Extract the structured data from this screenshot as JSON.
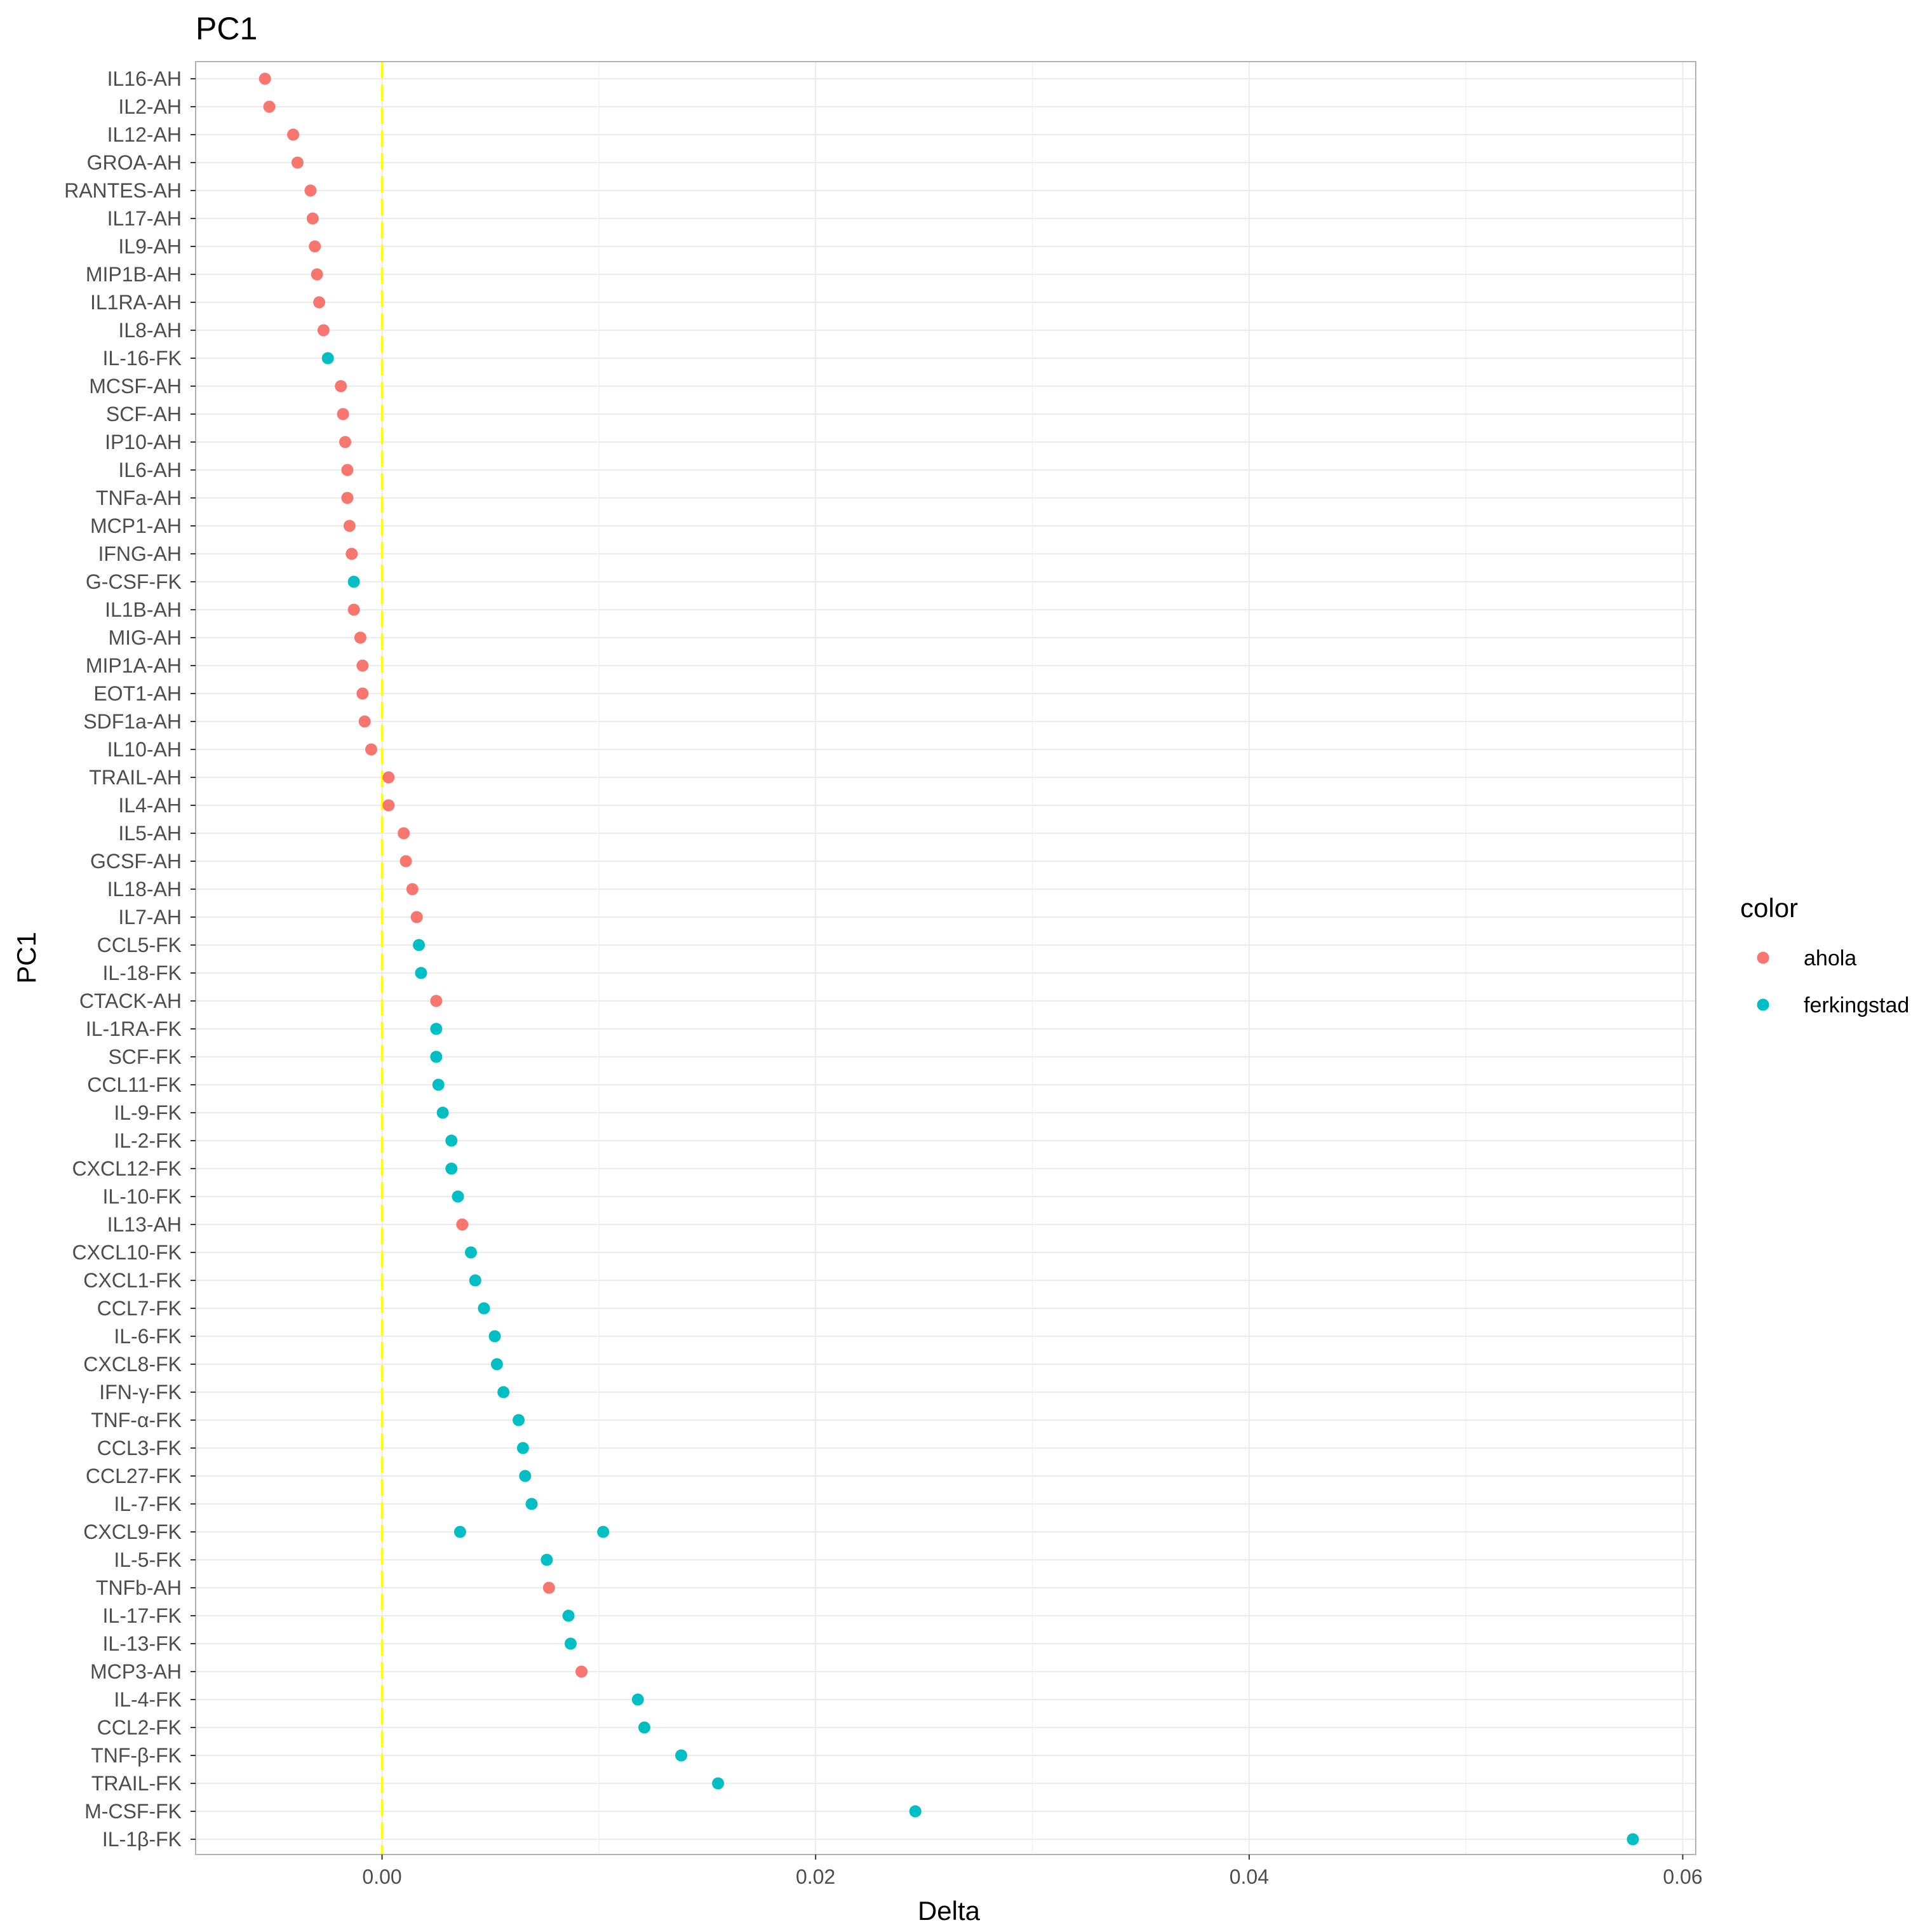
{
  "chart_data": {
    "type": "scatter",
    "title": "PC1",
    "xlabel": "Delta",
    "ylabel": "PC1",
    "xlim": [
      -0.0086,
      0.0606
    ],
    "x_ticks": [
      0.0,
      0.02,
      0.04,
      0.06
    ],
    "x_tick_labels": [
      "0.00",
      "0.02",
      "0.04",
      "0.06"
    ],
    "reference_line": {
      "x": 0,
      "color": "#FFFF00",
      "style": "dashed"
    },
    "grid": true,
    "legend": {
      "title": "color",
      "position": "right",
      "entries": [
        {
          "name": "ahola",
          "color": "#F8766D"
        },
        {
          "name": "ferkingstad",
          "color": "#00BFC4"
        }
      ]
    },
    "categories": [
      "IL16-AH",
      "IL2-AH",
      "IL12-AH",
      "GROA-AH",
      "RANTES-AH",
      "IL17-AH",
      "IL9-AH",
      "MIP1B-AH",
      "IL1RA-AH",
      "IL8-AH",
      "IL-16-FK",
      "MCSF-AH",
      "SCF-AH",
      "IP10-AH",
      "IL6-AH",
      "TNFa-AH",
      "MCP1-AH",
      "IFNG-AH",
      "G-CSF-FK",
      "IL1B-AH",
      "MIG-AH",
      "MIP1A-AH",
      "EOT1-AH",
      "SDF1a-AH",
      "IL10-AH",
      "TRAIL-AH",
      "IL4-AH",
      "IL5-AH",
      "GCSF-AH",
      "IL18-AH",
      "IL7-AH",
      "CCL5-FK",
      "IL-18-FK",
      "CTACK-AH",
      "IL-1RA-FK",
      "SCF-FK",
      "CCL11-FK",
      "IL-9-FK",
      "IL-2-FK",
      "CXCL12-FK",
      "IL-10-FK",
      "IL13-AH",
      "CXCL10-FK",
      "CXCL1-FK",
      "CCL7-FK",
      "IL-6-FK",
      "CXCL8-FK",
      "IFN-γ-FK",
      "TNF-α-FK",
      "CCL3-FK",
      "CCL27-FK",
      "IL-7-FK",
      "CXCL9-FK",
      "IL-5-FK",
      "TNFb-AH",
      "IL-17-FK",
      "IL-13-FK",
      "MCP3-AH",
      "IL-4-FK",
      "CCL2-FK",
      "TNF-β-FK",
      "TRAIL-FK",
      "M-CSF-FK",
      "IL-1β-FK"
    ],
    "points": [
      {
        "label": "IL16-AH",
        "x": -0.0054,
        "series": "ahola"
      },
      {
        "label": "IL2-AH",
        "x": -0.0052,
        "series": "ahola"
      },
      {
        "label": "IL12-AH",
        "x": -0.0041,
        "series": "ahola"
      },
      {
        "label": "GROA-AH",
        "x": -0.0039,
        "series": "ahola"
      },
      {
        "label": "RANTES-AH",
        "x": -0.0033,
        "series": "ahola"
      },
      {
        "label": "IL17-AH",
        "x": -0.0032,
        "series": "ahola"
      },
      {
        "label": "IL9-AH",
        "x": -0.0031,
        "series": "ahola"
      },
      {
        "label": "MIP1B-AH",
        "x": -0.003,
        "series": "ahola"
      },
      {
        "label": "IL1RA-AH",
        "x": -0.0029,
        "series": "ahola"
      },
      {
        "label": "IL8-AH",
        "x": -0.0027,
        "series": "ahola"
      },
      {
        "label": "IL-16-FK",
        "x": -0.0025,
        "series": "ferkingstad"
      },
      {
        "label": "MCSF-AH",
        "x": -0.0019,
        "series": "ahola"
      },
      {
        "label": "SCF-AH",
        "x": -0.0018,
        "series": "ahola"
      },
      {
        "label": "IP10-AH",
        "x": -0.0017,
        "series": "ahola"
      },
      {
        "label": "IL6-AH",
        "x": -0.0016,
        "series": "ahola"
      },
      {
        "label": "TNFa-AH",
        "x": -0.0016,
        "series": "ahola"
      },
      {
        "label": "MCP1-AH",
        "x": -0.0015,
        "series": "ahola"
      },
      {
        "label": "IFNG-AH",
        "x": -0.0014,
        "series": "ahola"
      },
      {
        "label": "G-CSF-FK",
        "x": -0.0013,
        "series": "ferkingstad"
      },
      {
        "label": "IL1B-AH",
        "x": -0.0013,
        "series": "ahola"
      },
      {
        "label": "MIG-AH",
        "x": -0.001,
        "series": "ahola"
      },
      {
        "label": "MIP1A-AH",
        "x": -0.0009,
        "series": "ahola"
      },
      {
        "label": "EOT1-AH",
        "x": -0.0009,
        "series": "ahola"
      },
      {
        "label": "SDF1a-AH",
        "x": -0.0008,
        "series": "ahola"
      },
      {
        "label": "IL10-AH",
        "x": -0.0005,
        "series": "ahola"
      },
      {
        "label": "TRAIL-AH",
        "x": 0.0003,
        "series": "ahola"
      },
      {
        "label": "IL4-AH",
        "x": 0.0003,
        "series": "ahola"
      },
      {
        "label": "IL5-AH",
        "x": 0.001,
        "series": "ahola"
      },
      {
        "label": "GCSF-AH",
        "x": 0.0011,
        "series": "ahola"
      },
      {
        "label": "IL18-AH",
        "x": 0.0014,
        "series": "ahola"
      },
      {
        "label": "IL7-AH",
        "x": 0.0016,
        "series": "ahola"
      },
      {
        "label": "CCL5-FK",
        "x": 0.0017,
        "series": "ferkingstad"
      },
      {
        "label": "IL-18-FK",
        "x": 0.0018,
        "series": "ferkingstad"
      },
      {
        "label": "CTACK-AH",
        "x": 0.0025,
        "series": "ahola"
      },
      {
        "label": "IL-1RA-FK",
        "x": 0.0025,
        "series": "ferkingstad"
      },
      {
        "label": "SCF-FK",
        "x": 0.0025,
        "series": "ferkingstad"
      },
      {
        "label": "CCL11-FK",
        "x": 0.0026,
        "series": "ferkingstad"
      },
      {
        "label": "IL-9-FK",
        "x": 0.0028,
        "series": "ferkingstad"
      },
      {
        "label": "IL-2-FK",
        "x": 0.0032,
        "series": "ferkingstad"
      },
      {
        "label": "CXCL12-FK",
        "x": 0.0032,
        "series": "ferkingstad"
      },
      {
        "label": "IL-10-FK",
        "x": 0.0035,
        "series": "ferkingstad"
      },
      {
        "label": "IL13-AH",
        "x": 0.0037,
        "series": "ahola"
      },
      {
        "label": "CXCL10-FK",
        "x": 0.0041,
        "series": "ferkingstad"
      },
      {
        "label": "CXCL1-FK",
        "x": 0.0043,
        "series": "ferkingstad"
      },
      {
        "label": "CCL7-FK",
        "x": 0.0047,
        "series": "ferkingstad"
      },
      {
        "label": "IL-6-FK",
        "x": 0.0052,
        "series": "ferkingstad"
      },
      {
        "label": "CXCL8-FK",
        "x": 0.0053,
        "series": "ferkingstad"
      },
      {
        "label": "IFN-γ-FK",
        "x": 0.0056,
        "series": "ferkingstad"
      },
      {
        "label": "TNF-α-FK",
        "x": 0.0063,
        "series": "ferkingstad"
      },
      {
        "label": "CCL3-FK",
        "x": 0.0065,
        "series": "ferkingstad"
      },
      {
        "label": "CCL27-FK",
        "x": 0.0066,
        "series": "ferkingstad"
      },
      {
        "label": "IL-7-FK",
        "x": 0.0069,
        "series": "ferkingstad"
      },
      {
        "label": "CXCL9-FK",
        "x": 0.0036,
        "series": "ferkingstad"
      },
      {
        "label": "CXCL9-FK",
        "x": 0.0102,
        "series": "ferkingstad"
      },
      {
        "label": "IL-5-FK",
        "x": 0.0076,
        "series": "ferkingstad"
      },
      {
        "label": "TNFb-AH",
        "x": 0.0077,
        "series": "ahola"
      },
      {
        "label": "IL-17-FK",
        "x": 0.0086,
        "series": "ferkingstad"
      },
      {
        "label": "IL-13-FK",
        "x": 0.0087,
        "series": "ferkingstad"
      },
      {
        "label": "MCP3-AH",
        "x": 0.0092,
        "series": "ahola"
      },
      {
        "label": "IL-4-FK",
        "x": 0.0118,
        "series": "ferkingstad"
      },
      {
        "label": "CCL2-FK",
        "x": 0.0121,
        "series": "ferkingstad"
      },
      {
        "label": "TNF-β-FK",
        "x": 0.0138,
        "series": "ferkingstad"
      },
      {
        "label": "TRAIL-FK",
        "x": 0.0155,
        "series": "ferkingstad"
      },
      {
        "label": "M-CSF-FK",
        "x": 0.0246,
        "series": "ferkingstad"
      },
      {
        "label": "IL-1β-FK",
        "x": 0.0577,
        "series": "ferkingstad"
      }
    ]
  }
}
